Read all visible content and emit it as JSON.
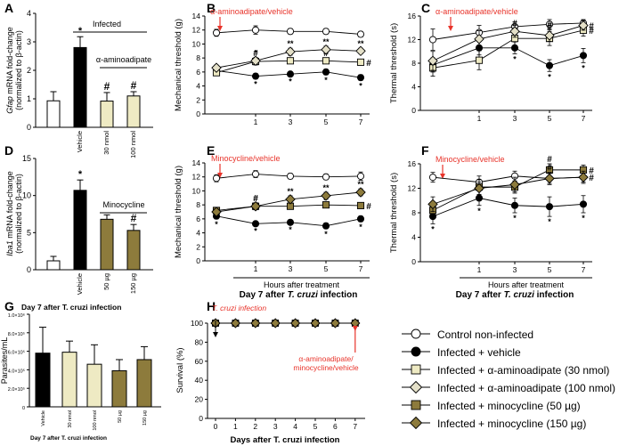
{
  "colors": {
    "red": "#e8332a",
    "olive": "#8d7b3c",
    "light": "#eeeac3",
    "black": "#000000",
    "white": "#ffffff",
    "gray_diamond": "#e4e0c8"
  },
  "panel_labels": {
    "A": "A",
    "B": "B",
    "C": "C",
    "D": "D",
    "E": "E",
    "F": "F",
    "G": "G",
    "H": "H"
  },
  "common": {
    "x_hours_label": "Hours after treatment",
    "day7_prefix": "Day 7 after ",
    "day7_species": "T. cruzi",
    "day7_suffix": " infection",
    "mech_ylabel": "Mechanical threshold (g)",
    "therm_ylabel": "Thermal threshold (s)",
    "sig_hash": "#",
    "sig_star": "*",
    "sig_dstar": "**"
  },
  "chart_data": [
    {
      "id": "A",
      "type": "bar",
      "ylabel_gene": "Gfap",
      "ylabel_rest": " mRNA fold-change",
      "ylabel2": "(normalized to β-actin)",
      "ylim": [
        0,
        4
      ],
      "yticks": [
        "0",
        "1",
        "2",
        "3",
        "4"
      ],
      "categories": [
        "",
        "Vehicle",
        "30 nmol",
        "100 nmol"
      ],
      "values": [
        0.93,
        2.8,
        0.92,
        1.1
      ],
      "errors": [
        0.32,
        0.38,
        0.3,
        0.15
      ],
      "fills": [
        "white",
        "black",
        "light",
        "light"
      ],
      "marks": [
        "",
        "*",
        "#",
        "#"
      ],
      "bracket_label": "Infected",
      "treatment_label": "α-aminoadipate"
    },
    {
      "id": "D",
      "type": "bar",
      "ylabel_gene": "Iba1",
      "ylabel_rest": " mRNA fold-change",
      "ylabel2": "(normalized to β-actin)",
      "ylim": [
        0,
        15
      ],
      "yticks": [
        "0",
        "5",
        "10",
        "15"
      ],
      "categories": [
        "",
        "Vehicle",
        "50 µg",
        "150 µg"
      ],
      "values": [
        1.2,
        10.7,
        6.8,
        5.3
      ],
      "errors": [
        0.6,
        1.4,
        0.6,
        0.8
      ],
      "fills": [
        "white",
        "black",
        "olive",
        "olive"
      ],
      "marks": [
        "",
        "*",
        "",
        "#"
      ],
      "treatment_label": "Minocycline",
      "footer": "Day 7 after T. cruzi infection"
    },
    {
      "id": "G",
      "type": "bar",
      "ylabel": "Parasites/mL",
      "ylim": [
        0,
        1000000.0
      ],
      "yticks": [
        "0",
        "2.0×10⁵",
        "4.0×10⁵",
        "6.0×10⁵",
        "8.0×10⁵",
        "1.0×10⁶"
      ],
      "categories": [
        "Vehicle",
        "30 nmol",
        "100 nmol",
        "50 µg",
        "150 µg"
      ],
      "values": [
        580000,
        590000,
        460000,
        390000,
        510000
      ],
      "errors": [
        280000,
        120000,
        210000,
        120000,
        140000
      ],
      "fills": [
        "black",
        "light",
        "light",
        "olive",
        "olive"
      ],
      "footer": "Day 7 after T. cruzi infection"
    },
    {
      "id": "B",
      "type": "line",
      "x": [
        0,
        1,
        3,
        5,
        7
      ],
      "ylabel": "Mechanical threshold (g)",
      "ylim": [
        0,
        14
      ],
      "yticks": [
        "0",
        "2",
        "4",
        "6",
        "8",
        "10",
        "12",
        "14"
      ],
      "xticks": [
        "1",
        "3",
        "5",
        "7"
      ],
      "annotation": "α-aminoadipate/vehicle",
      "series": [
        {
          "name": "Control non-infected",
          "marker": "circle",
          "fill": "white",
          "values": [
            11.6,
            12.0,
            11.8,
            11.8,
            11.4
          ],
          "err": [
            0.5,
            0.6,
            0.4,
            0.4,
            0.4
          ]
        },
        {
          "name": "Infected + vehicle",
          "marker": "circle",
          "fill": "black",
          "values": [
            6.2,
            5.4,
            5.7,
            6.0,
            5.2
          ],
          "err": [
            0.4,
            0.4,
            0.3,
            0.4,
            0.4
          ],
          "marks": [
            "",
            "*",
            "*",
            "*",
            "*"
          ]
        },
        {
          "name": "Infected + α-aminoadipate (30 nmol)",
          "marker": "square",
          "fill": "light",
          "values": [
            5.9,
            7.5,
            7.6,
            7.6,
            7.4
          ],
          "err": [
            0.4,
            0.5,
            0.4,
            0.4,
            0.4
          ],
          "marks": [
            "",
            "#",
            "#",
            "#",
            "#"
          ]
        },
        {
          "name": "Infected + α-aminoadipate (100 nmol)",
          "marker": "diamond",
          "fill": "gray_diamond",
          "values": [
            6.6,
            7.6,
            8.9,
            9.2,
            9.0
          ],
          "err": [
            0.4,
            0.5,
            0.5,
            0.5,
            0.4
          ],
          "marks": [
            "",
            "*",
            "**",
            "**",
            "**"
          ]
        }
      ]
    },
    {
      "id": "E",
      "type": "line",
      "x": [
        0,
        1,
        3,
        5,
        7
      ],
      "ylabel": "Mechanical threshold (g)",
      "ylim": [
        0,
        14
      ],
      "yticks": [
        "0",
        "2",
        "4",
        "6",
        "8",
        "10",
        "12",
        "14"
      ],
      "xticks": [
        "1",
        "3",
        "5",
        "7"
      ],
      "annotation": "Minocycline/vehicle",
      "series": [
        {
          "name": "Control non-infected",
          "marker": "circle",
          "fill": "white",
          "values": [
            11.8,
            12.4,
            12.1,
            12.0,
            12.1
          ],
          "err": [
            0.5,
            0.5,
            0.4,
            0.4,
            0.6
          ]
        },
        {
          "name": "Infected + vehicle",
          "marker": "circle",
          "fill": "black",
          "values": [
            6.4,
            5.3,
            5.5,
            5.0,
            6.0
          ],
          "err": [
            0.4,
            0.3,
            0.3,
            0.4,
            0.4
          ],
          "marks": [
            "*",
            "*",
            "*",
            "*",
            "*"
          ]
        },
        {
          "name": "Infected + minocycline (50 µg)",
          "marker": "square",
          "fill": "olive",
          "values": [
            7.2,
            7.8,
            7.8,
            8.0,
            7.9
          ],
          "err": [
            0.4,
            0.5,
            0.4,
            0.4,
            0.4
          ],
          "marks": [
            "",
            "#",
            "#",
            "#",
            "#"
          ]
        },
        {
          "name": "Infected + minocycline (150 µg)",
          "marker": "diamond",
          "fill": "olive",
          "values": [
            7.0,
            7.8,
            8.8,
            9.3,
            9.8
          ],
          "err": [
            0.4,
            0.5,
            0.5,
            0.5,
            0.5
          ],
          "marks": [
            "",
            "#",
            "**",
            "**",
            "**"
          ]
        }
      ]
    },
    {
      "id": "C",
      "type": "line",
      "x": [
        0,
        1,
        3,
        5,
        7
      ],
      "ylabel": "Thermal threshold (s)",
      "ylim": [
        0,
        16
      ],
      "yticks": [
        "0",
        "4",
        "8",
        "12",
        "16"
      ],
      "xticks": [
        "1",
        "3",
        "5",
        "7"
      ],
      "annotation": "α-aminoadipate/vehicle",
      "series": [
        {
          "name": "Control non-infected",
          "marker": "circle",
          "fill": "white",
          "values": [
            12.0,
            13.2,
            14.2,
            14.6,
            14.8
          ],
          "err": [
            1.8,
            1.2,
            0.8,
            0.8,
            0.6
          ]
        },
        {
          "name": "Infected + vehicle",
          "marker": "circle",
          "fill": "black",
          "values": [
            7.7,
            10.6,
            10.6,
            7.6,
            9.3
          ],
          "err": [
            1.2,
            1.2,
            1.0,
            1.0,
            1.2
          ],
          "marks": [
            "",
            "",
            "*",
            "*",
            "*"
          ]
        },
        {
          "name": "Infected + α-aminoadipate (30 nmol)",
          "marker": "square",
          "fill": "light",
          "values": [
            7.2,
            8.5,
            12.2,
            12.2,
            13.6
          ],
          "err": [
            1.4,
            1.6,
            1.8,
            1.2,
            1.0
          ],
          "marks": [
            "",
            "",
            "#",
            "#",
            "#"
          ]
        },
        {
          "name": "Infected + α-aminoadipate (100 nmol)",
          "marker": "diamond",
          "fill": "gray_diamond",
          "values": [
            8.4,
            12.1,
            13.4,
            12.7,
            14.4
          ],
          "err": [
            1.6,
            1.4,
            1.0,
            1.0,
            0.8
          ],
          "marks": [
            "",
            "",
            "",
            "#",
            "#"
          ]
        }
      ]
    },
    {
      "id": "F",
      "type": "line",
      "x": [
        0,
        1,
        3,
        5,
        7
      ],
      "ylabel": "Thermal threshold (s)",
      "ylim": [
        0,
        16
      ],
      "yticks": [
        "0",
        "4",
        "8",
        "12",
        "16"
      ],
      "xticks": [
        "1",
        "3",
        "5",
        "7"
      ],
      "annotation": "Minocycline/vehicle",
      "series": [
        {
          "name": "Control non-infected",
          "marker": "circle",
          "fill": "white",
          "values": [
            13.8,
            13.0,
            14.0,
            13.6,
            13.8
          ],
          "err": [
            0.8,
            1.0,
            0.8,
            0.8,
            0.8
          ]
        },
        {
          "name": "Infected + vehicle",
          "marker": "circle",
          "fill": "black",
          "values": [
            7.4,
            10.4,
            9.2,
            9.0,
            9.4
          ],
          "err": [
            1.2,
            1.2,
            1.2,
            1.6,
            1.4
          ],
          "marks": [
            "*",
            "*",
            "*",
            "*",
            "*"
          ]
        },
        {
          "name": "Infected + minocycline (50 µg)",
          "marker": "square",
          "fill": "olive",
          "values": [
            8.4,
            12.2,
            12.2,
            15.0,
            15.0
          ],
          "err": [
            1.2,
            1.2,
            1.0,
            1.0,
            0.8
          ],
          "marks": [
            "",
            "",
            "",
            "#",
            "#"
          ]
        },
        {
          "name": "Infected + minocycline (150 µg)",
          "marker": "diamond",
          "fill": "olive",
          "values": [
            9.4,
            12.0,
            12.6,
            13.6,
            13.8
          ],
          "err": [
            1.2,
            1.0,
            1.2,
            1.0,
            1.0
          ],
          "marks": [
            "",
            "",
            "",
            "#",
            "#"
          ]
        }
      ]
    },
    {
      "id": "H",
      "type": "line",
      "x": [
        0,
        1,
        2,
        3,
        4,
        5,
        6,
        7
      ],
      "ylabel": "Survival (%)",
      "xlabel": "Days after T. cruzi infection",
      "ylim": [
        0,
        100
      ],
      "yticks": [
        "0",
        "20",
        "40",
        "60",
        "80",
        "100"
      ],
      "xticks": [
        "0",
        "1",
        "2",
        "3",
        "4",
        "5",
        "6",
        "7"
      ],
      "values": [
        100,
        100,
        100,
        100,
        100,
        100,
        100,
        100
      ],
      "annotation_start": "T. cruzi infection",
      "annotation_end_lines": [
        "α-aminoadipate/",
        "minocycline/vehicle"
      ]
    }
  ],
  "legend": [
    {
      "label": "Control non-infected",
      "marker": "circle",
      "fill": "white"
    },
    {
      "label": "Infected + vehicle",
      "marker": "circle",
      "fill": "black"
    },
    {
      "label": "Infected + α-aminoadipate (30 nmol)",
      "marker": "square",
      "fill": "light"
    },
    {
      "label": "Infected + α-aminoadipate (100 nmol)",
      "marker": "diamond",
      "fill": "gray_diamond"
    },
    {
      "label": "Infected + minocycline (50 µg)",
      "marker": "square",
      "fill": "olive"
    },
    {
      "label": "Infected + minocycline (150 µg)",
      "marker": "diamond",
      "fill": "olive"
    }
  ]
}
